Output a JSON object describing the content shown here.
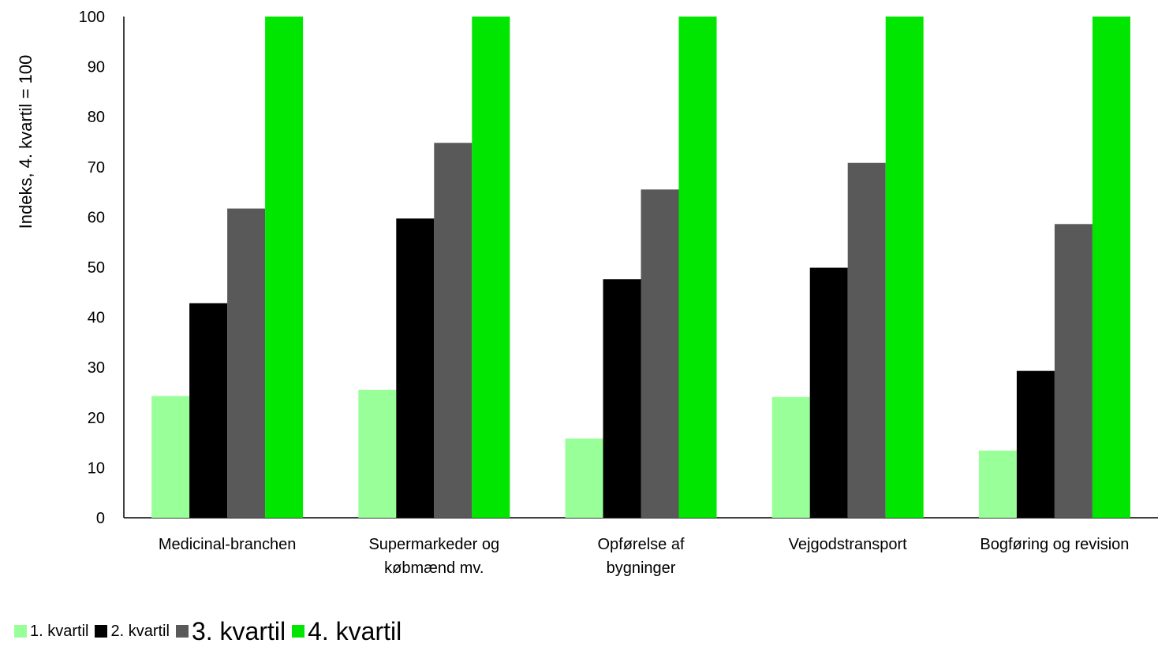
{
  "chart_data": {
    "type": "bar",
    "title": "",
    "xlabel": "",
    "ylabel": "Indeks, 4. kvartil = 100",
    "ylim": [
      0,
      100
    ],
    "yticks": [
      0,
      10,
      20,
      30,
      40,
      50,
      60,
      70,
      80,
      90,
      100
    ],
    "grid": false,
    "legend_position": "bottom-left",
    "categories": [
      [
        "Medicinal-branchen"
      ],
      [
        "Supermarkeder og",
        "købmænd mv."
      ],
      [
        "Opførelse af",
        "bygninger"
      ],
      [
        "Vejgodstransport"
      ],
      [
        "Bogføring og revision"
      ]
    ],
    "series": [
      {
        "name": "1. kvartil",
        "color": "#99ff99",
        "values": [
          24.3,
          25.5,
          15.8,
          24.1,
          13.4
        ]
      },
      {
        "name": "2. kvartil",
        "color": "#000000",
        "values": [
          42.8,
          59.7,
          47.6,
          49.9,
          29.3
        ]
      },
      {
        "name": "3. kvartil",
        "color": "#595959",
        "values": [
          61.7,
          74.8,
          65.5,
          70.8,
          58.6
        ]
      },
      {
        "name": "4. kvartil",
        "color": "#00e600",
        "values": [
          100,
          100,
          100,
          100,
          100
        ]
      }
    ]
  }
}
